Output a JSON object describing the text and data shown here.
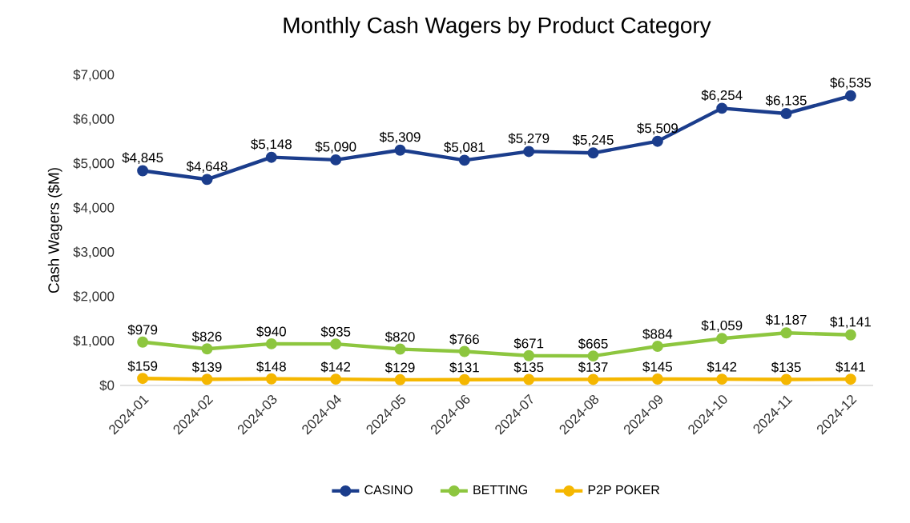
{
  "chart_data": {
    "type": "line",
    "title": "Monthly Cash Wagers by Product Category",
    "ylabel": "Cash Wagers ($M)",
    "categories": [
      "2024-01",
      "2024-02",
      "2024-03",
      "2024-04",
      "2024-05",
      "2024-06",
      "2024-07",
      "2024-08",
      "2024-09",
      "2024-10",
      "2024-11",
      "2024-12"
    ],
    "series": [
      {
        "name": "CASINO",
        "color": "#1b3d8c",
        "values": [
          4845,
          4648,
          5148,
          5090,
          5309,
          5081,
          5279,
          5245,
          5509,
          6254,
          6135,
          6535
        ],
        "value_labels": [
          "$4,845",
          "$4,648",
          "$5,148",
          "$5,090",
          "$5,309",
          "$5,081",
          "$5,279",
          "$5,245",
          "$5,509",
          "$6,254",
          "$6,135",
          "$6,535"
        ]
      },
      {
        "name": "BETTING",
        "color": "#8dc63f",
        "values": [
          979,
          826,
          940,
          935,
          820,
          766,
          671,
          665,
          884,
          1059,
          1187,
          1141
        ],
        "value_labels": [
          "$979",
          "$826",
          "$940",
          "$935",
          "$820",
          "$766",
          "$671",
          "$665",
          "$884",
          "$1,059",
          "$1,187",
          "$1,141"
        ]
      },
      {
        "name": "P2P POKER",
        "color": "#f5b700",
        "values": [
          159,
          139,
          148,
          142,
          129,
          131,
          135,
          137,
          145,
          142,
          135,
          141
        ],
        "value_labels": [
          "$159",
          "$139",
          "$148",
          "$142",
          "$129",
          "$131",
          "$135",
          "$137",
          "$145",
          "$142",
          "$135",
          "$141"
        ]
      }
    ],
    "ylim": [
      0,
      7000
    ],
    "yticks": [
      {
        "value": 0,
        "label": "$0"
      },
      {
        "value": 1000,
        "label": "$1,000"
      },
      {
        "value": 2000,
        "label": "$2,000"
      },
      {
        "value": 3000,
        "label": "$3,000"
      },
      {
        "value": 4000,
        "label": "$4,000"
      },
      {
        "value": 5000,
        "label": "$5,000"
      },
      {
        "value": 6000,
        "label": "$6,000"
      },
      {
        "value": 7000,
        "label": "$7,000"
      }
    ],
    "legend": "bottom",
    "marker": "circle"
  }
}
